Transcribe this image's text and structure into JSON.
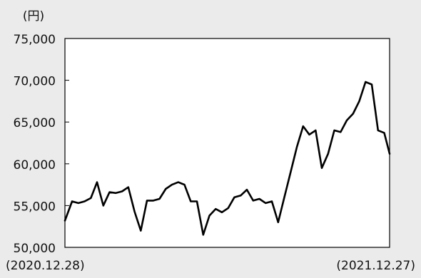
{
  "chart_data": {
    "type": "line",
    "unit_label": "(円)",
    "ylim": [
      50000,
      75000
    ],
    "y_ticks": [
      50000,
      55000,
      60000,
      65000,
      70000,
      75000
    ],
    "y_tick_labels": [
      "50,000",
      "55,000",
      "60,000",
      "65,000",
      "70,000",
      "75,000"
    ],
    "x_start_label": "(2020.12.28)",
    "x_end_label": "(2021.12.27)",
    "x_start": "2020-12-28",
    "x_end": "2021-12-27",
    "grid": false,
    "line_color": "#000000",
    "plot_background": "#ffffff",
    "page_background": "#ebebeb",
    "x": [
      "2020-12-28",
      "2021-01-05",
      "2021-01-12",
      "2021-01-19",
      "2021-01-26",
      "2021-02-02",
      "2021-02-09",
      "2021-02-16",
      "2021-02-23",
      "2021-03-02",
      "2021-03-09",
      "2021-03-16",
      "2021-03-23",
      "2021-03-30",
      "2021-04-06",
      "2021-04-13",
      "2021-04-20",
      "2021-04-27",
      "2021-05-04",
      "2021-05-11",
      "2021-05-18",
      "2021-05-25",
      "2021-06-01",
      "2021-06-08",
      "2021-06-15",
      "2021-06-22",
      "2021-06-29",
      "2021-07-06",
      "2021-07-13",
      "2021-07-20",
      "2021-07-27",
      "2021-08-03",
      "2021-08-10",
      "2021-08-17",
      "2021-08-24",
      "2021-08-31",
      "2021-09-07",
      "2021-09-14",
      "2021-09-21",
      "2021-09-28",
      "2021-10-05",
      "2021-10-12",
      "2021-10-19",
      "2021-10-26",
      "2021-11-02",
      "2021-11-09",
      "2021-11-16",
      "2021-11-23",
      "2021-11-30",
      "2021-12-07",
      "2021-12-14",
      "2021-12-21",
      "2021-12-27"
    ],
    "series": [
      {
        "values": [
          53200,
          55500,
          55300,
          55500,
          55900,
          57800,
          55000,
          56600,
          56500,
          56700,
          57200,
          54300,
          52000,
          55600,
          55600,
          55800,
          57000,
          57500,
          57800,
          57500,
          55500,
          55500,
          51500,
          53800,
          54600,
          54200,
          54700,
          56000,
          56200,
          56900,
          55600,
          55800,
          55300,
          55500,
          53000,
          56000,
          59000,
          62000,
          64500,
          63500,
          64000,
          59500,
          61200,
          64000,
          63800,
          65200,
          66000,
          67500,
          69800,
          69500,
          64000,
          63700,
          61200
        ]
      }
    ]
  }
}
